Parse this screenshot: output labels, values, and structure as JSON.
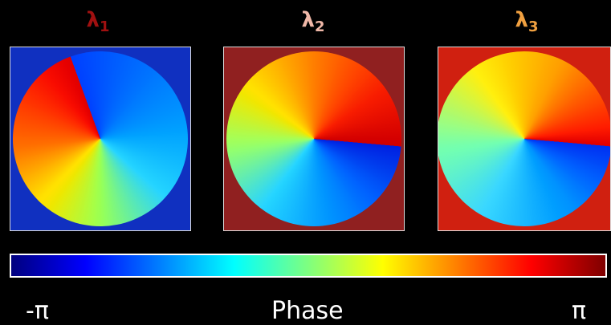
{
  "panels": [
    {
      "label": "λ",
      "subscript": "1"
    },
    {
      "label": "λ",
      "subscript": "2"
    },
    {
      "label": "λ",
      "subscript": "3"
    }
  ],
  "colorbar": {
    "min_label": "-π",
    "title": "Phase",
    "max_label": "π"
  }
}
